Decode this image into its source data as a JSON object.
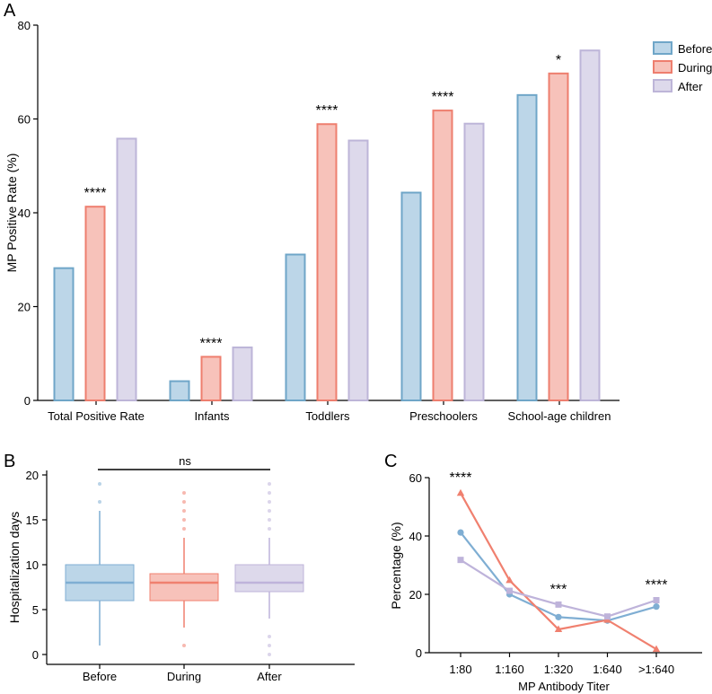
{
  "colors": {
    "before_fill": "#BCD6E8",
    "before_stroke": "#6FA6C8",
    "during_fill": "#F7C2BA",
    "during_stroke": "#EE7E6E",
    "after_fill": "#DDD9EB",
    "after_stroke": "#BDB5D8",
    "before_line": "#7FAED3",
    "during_line": "#F0806F",
    "after_line": "#BEB3DA"
  },
  "chart_data": [
    {
      "panel": "A",
      "type": "bar",
      "title": "",
      "xlabel": "",
      "ylabel": "MP Positive Rate (%)",
      "ylim": [
        0,
        80
      ],
      "yticks": [
        "0",
        "20",
        "40",
        "60",
        "80"
      ],
      "categories": [
        "Total Positive Rate",
        "Infants",
        "Toddlers",
        "Preschoolers",
        "School-age children"
      ],
      "series": [
        {
          "name": "Before",
          "values": [
            28.2,
            4.1,
            31.1,
            44.3,
            65.1
          ]
        },
        {
          "name": "During",
          "values": [
            41.3,
            9.3,
            58.9,
            61.8,
            69.7
          ]
        },
        {
          "name": "After",
          "values": [
            55.8,
            11.3,
            55.4,
            59.0,
            74.6
          ]
        }
      ],
      "significance": [
        "****",
        "****",
        "****",
        "****",
        "*"
      ],
      "legend": "top-right"
    },
    {
      "panel": "B",
      "type": "box",
      "xlabel": "",
      "ylabel": "Hospitalization days",
      "ylim": [
        0,
        20
      ],
      "yticks": [
        "0",
        "5",
        "10",
        "15",
        "20"
      ],
      "categories": [
        "Before",
        "During",
        "After"
      ],
      "boxes": [
        {
          "name": "Before",
          "whisker_low": 1,
          "q1": 6,
          "median": 8,
          "q3": 10,
          "whisker_high": 16,
          "outliers": [
            17,
            19
          ]
        },
        {
          "name": "During",
          "whisker_low": 3,
          "q1": 6,
          "median": 8,
          "q3": 9,
          "whisker_high": 13,
          "outliers": [
            1,
            14,
            15,
            16,
            17,
            18
          ]
        },
        {
          "name": "After",
          "whisker_low": 4,
          "q1": 7,
          "median": 8,
          "q3": 10,
          "whisker_high": 13,
          "outliers": [
            0,
            1,
            2,
            14,
            15,
            16,
            17,
            18,
            19
          ]
        }
      ],
      "annotation": "ns"
    },
    {
      "panel": "C",
      "type": "line",
      "xlabel": "MP Antibody Titer",
      "ylabel": "Percentage (%)",
      "ylim": [
        0,
        60
      ],
      "yticks": [
        "0",
        "20",
        "40",
        "60"
      ],
      "categories": [
        "1:80",
        "1:160",
        "1:320",
        "1:640",
        ">1:640"
      ],
      "series": [
        {
          "name": "Before",
          "marker": "circle",
          "values": [
            41.2,
            20.0,
            12.2,
            11.0,
            15.8
          ]
        },
        {
          "name": "During",
          "marker": "triangle",
          "values": [
            54.7,
            24.8,
            8.0,
            11.2,
            1.2
          ]
        },
        {
          "name": "After",
          "marker": "square",
          "values": [
            31.8,
            21.2,
            16.5,
            12.4,
            18.0
          ]
        }
      ],
      "significance": [
        "****",
        "",
        "***",
        "",
        "****"
      ]
    }
  ],
  "panel_labels": {
    "a": "A",
    "b": "B",
    "c": "C"
  }
}
